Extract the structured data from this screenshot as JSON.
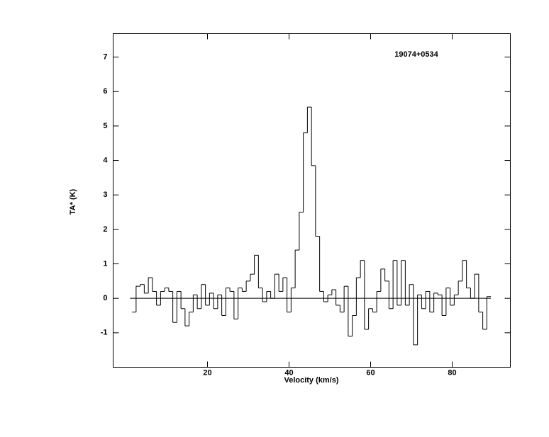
{
  "chart_data": {
    "type": "step",
    "title": "19074+0534",
    "x_label": "Velocity (km/s)",
    "y_label": "TA* (K)",
    "x": [
      2,
      3,
      4,
      5,
      6,
      7,
      8,
      9,
      10,
      11,
      12,
      13,
      14,
      15,
      16,
      17,
      18,
      19,
      20,
      21,
      22,
      23,
      24,
      25,
      26,
      27,
      28,
      29,
      30,
      31,
      32,
      33,
      34,
      35,
      36,
      37,
      38,
      39,
      40,
      41,
      42,
      43,
      44,
      45,
      46,
      47,
      48,
      49,
      50,
      51,
      52,
      53,
      54,
      55,
      56,
      57,
      58,
      59,
      60,
      61,
      62,
      63,
      64,
      65,
      66,
      67,
      68,
      69,
      70,
      71,
      72,
      73,
      74,
      75,
      76,
      77,
      78,
      79,
      80,
      81,
      82,
      83,
      84,
      85,
      86,
      87,
      88,
      89
    ],
    "series": [
      {
        "color": "#000000",
        "values": [
          -0.4,
          0.35,
          0.4,
          0.15,
          0.6,
          0.2,
          -0.2,
          0.2,
          0.3,
          0.2,
          -0.7,
          0.2,
          -0.3,
          -0.8,
          -0.4,
          0.1,
          -0.3,
          0.4,
          -0.2,
          0.15,
          -0.3,
          0.1,
          -0.5,
          0.3,
          0.2,
          -0.6,
          0.3,
          0.2,
          0.5,
          0.7,
          1.25,
          0.3,
          -0.1,
          0.2,
          0.0,
          0.7,
          0.2,
          0.6,
          -0.4,
          0.3,
          1.4,
          2.5,
          4.8,
          5.55,
          3.85,
          1.8,
          0.2,
          -0.1,
          0.1,
          0.25,
          -0.2,
          -0.4,
          0.35,
          -1.1,
          -0.5,
          0.6,
          1.1,
          -0.9,
          -0.3,
          -0.4,
          0.2,
          0.85,
          0.5,
          -0.3,
          1.1,
          -0.2,
          1.1,
          -0.2,
          0.4,
          -1.35,
          0.1,
          -0.3,
          0.2,
          -0.4,
          0.15,
          0.1,
          -0.5,
          0.3,
          -0.2,
          0.1,
          0.5,
          1.1,
          0.3,
          0.0,
          0.7,
          -0.4,
          -0.9,
          0.05
        ]
      }
    ],
    "xlim": [
      -3.13,
      94.26
    ],
    "ylim": [
      -2,
      7.68
    ],
    "xticks": [
      20,
      40,
      60,
      80
    ],
    "yticks": [
      -1,
      0,
      1,
      2,
      3,
      4,
      5,
      6,
      7
    ]
  }
}
